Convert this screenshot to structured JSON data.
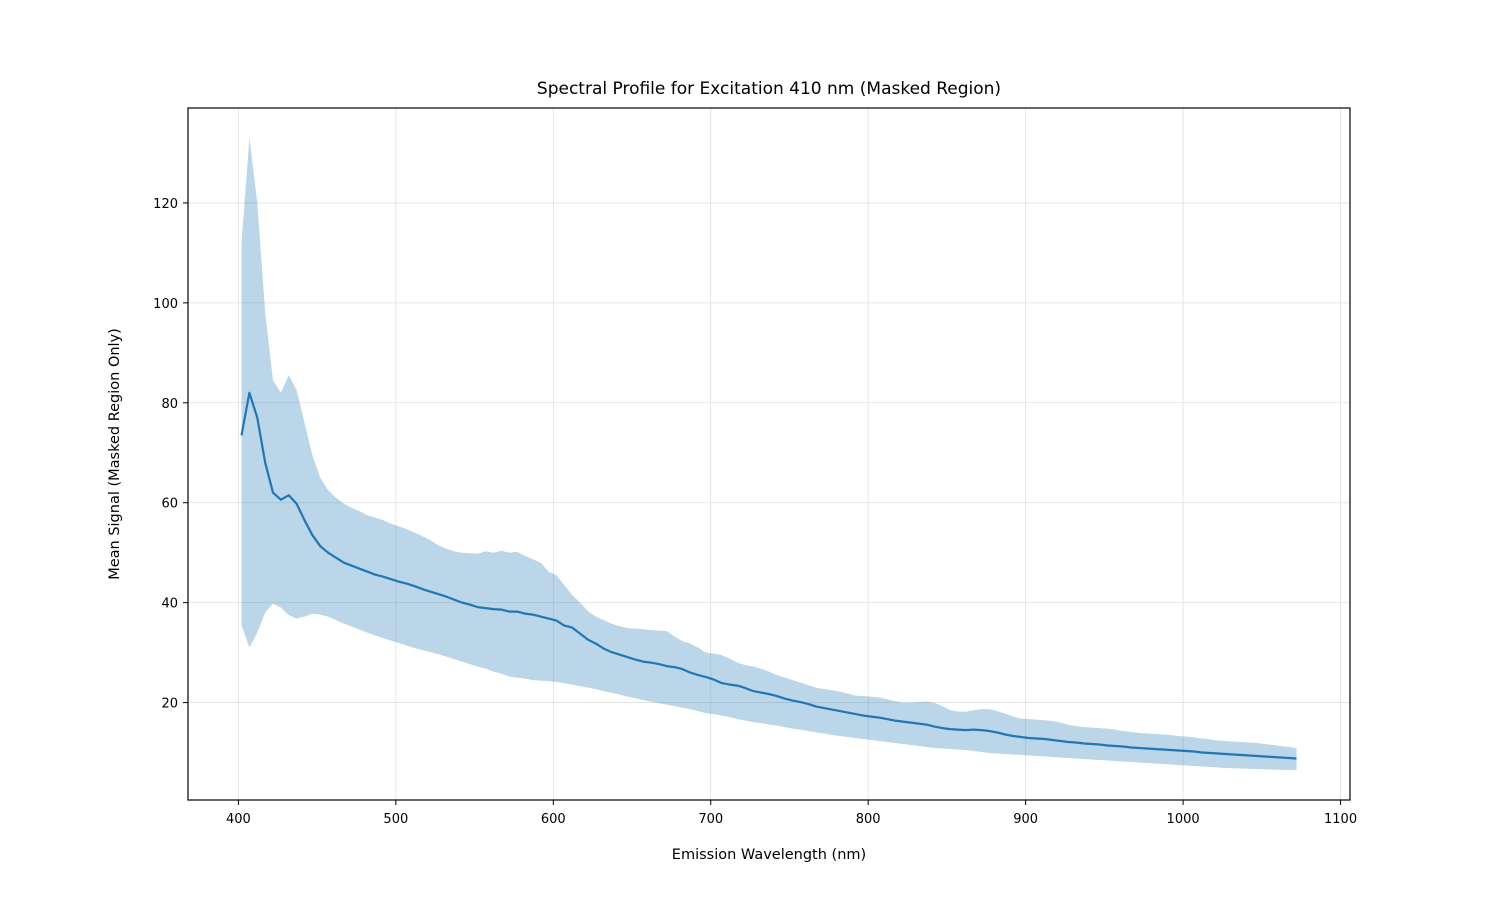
{
  "chart_data": {
    "type": "line",
    "title": "Spectral Profile for Excitation 410 nm (Masked Region)",
    "xlabel": "Emission Wavelength (nm)",
    "ylabel": "Mean Signal (Masked Region Only)",
    "xlim": [
      368,
      1106
    ],
    "ylim": [
      0.5,
      139
    ],
    "xticks": [
      400,
      500,
      600,
      700,
      800,
      900,
      1000,
      1100
    ],
    "yticks": [
      20,
      40,
      60,
      80,
      100,
      120
    ],
    "grid": true,
    "legend": "none",
    "colors": {
      "line": "#1f77b4",
      "band": "#1f77b4",
      "band_opacity": 0.3,
      "grid": "#e0e0e0"
    },
    "series": [
      {
        "x": [
          402,
          407,
          412,
          417,
          422,
          427,
          432,
          437,
          442,
          447,
          452,
          457,
          462,
          467,
          472,
          477,
          482,
          487,
          492,
          497,
          502,
          507,
          512,
          517,
          522,
          527,
          532,
          537,
          542,
          547,
          552,
          557,
          562,
          567,
          572,
          577,
          582,
          587,
          592,
          597,
          602,
          607,
          612,
          617,
          622,
          627,
          632,
          637,
          642,
          647,
          652,
          657,
          662,
          667,
          672,
          677,
          682,
          687,
          692,
          697,
          702,
          707,
          712,
          717,
          722,
          727,
          732,
          737,
          742,
          747,
          752,
          757,
          762,
          767,
          772,
          777,
          782,
          787,
          792,
          797,
          802,
          807,
          812,
          817,
          822,
          827,
          832,
          837,
          842,
          847,
          852,
          857,
          862,
          867,
          872,
          877,
          882,
          887,
          892,
          897,
          902,
          907,
          912,
          917,
          922,
          927,
          932,
          937,
          942,
          947,
          952,
          957,
          962,
          967,
          972,
          977,
          982,
          987,
          992,
          997,
          1002,
          1007,
          1012,
          1017,
          1022,
          1027,
          1032,
          1037,
          1042,
          1047,
          1052,
          1057,
          1062,
          1067,
          1072
        ],
        "mean": [
          73.5,
          82.0,
          77.0,
          68.0,
          62.0,
          60.6,
          61.5,
          59.8,
          56.5,
          53.5,
          51.3,
          50.0,
          49.0,
          48.0,
          47.4,
          46.8,
          46.2,
          45.6,
          45.2,
          44.7,
          44.2,
          43.8,
          43.3,
          42.7,
          42.2,
          41.7,
          41.2,
          40.6,
          40.0,
          39.6,
          39.1,
          38.9,
          38.7,
          38.6,
          38.2,
          38.2,
          37.8,
          37.6,
          37.2,
          36.8,
          36.4,
          35.4,
          35.0,
          33.8,
          32.6,
          31.8,
          30.8,
          30.1,
          29.6,
          29.1,
          28.6,
          28.2,
          28.0,
          27.7,
          27.3,
          27.1,
          26.7,
          26.0,
          25.5,
          25.1,
          24.6,
          23.9,
          23.6,
          23.4,
          22.9,
          22.3,
          22.0,
          21.7,
          21.3,
          20.8,
          20.4,
          20.1,
          19.7,
          19.2,
          18.9,
          18.6,
          18.3,
          18.0,
          17.7,
          17.4,
          17.2,
          17.0,
          16.7,
          16.4,
          16.2,
          16.0,
          15.8,
          15.6,
          15.2,
          14.9,
          14.7,
          14.6,
          14.5,
          14.6,
          14.5,
          14.3,
          14.0,
          13.6,
          13.3,
          13.1,
          12.9,
          12.8,
          12.7,
          12.5,
          12.3,
          12.1,
          12.0,
          11.8,
          11.7,
          11.6,
          11.4,
          11.3,
          11.2,
          11.0,
          10.9,
          10.8,
          10.7,
          10.6,
          10.5,
          10.4,
          10.3,
          10.2,
          10.0,
          9.9,
          9.8,
          9.7,
          9.6,
          9.5,
          9.4,
          9.3,
          9.2,
          9.1,
          9.0,
          8.9,
          8.8
        ],
        "upper": [
          112.0,
          133.0,
          120.0,
          98.0,
          84.5,
          82.0,
          85.5,
          82.5,
          76.0,
          69.5,
          65.0,
          62.5,
          61.0,
          59.8,
          59.0,
          58.3,
          57.5,
          57.0,
          56.5,
          55.8,
          55.3,
          54.7,
          54.0,
          53.3,
          52.5,
          51.5,
          50.8,
          50.3,
          50.0,
          49.9,
          49.8,
          50.3,
          50.0,
          50.4,
          50.0,
          50.2,
          49.4,
          48.7,
          48.0,
          46.2,
          45.5,
          43.5,
          41.5,
          40.0,
          38.3,
          37.2,
          36.5,
          35.8,
          35.3,
          34.9,
          34.8,
          34.7,
          34.5,
          34.4,
          34.3,
          33.2,
          32.3,
          31.8,
          31.0,
          30.0,
          29.8,
          29.5,
          28.8,
          28.0,
          27.5,
          27.2,
          26.8,
          26.2,
          25.5,
          25.0,
          24.5,
          24.0,
          23.5,
          23.0,
          22.7,
          22.5,
          22.2,
          21.8,
          21.4,
          21.3,
          21.2,
          21.0,
          20.7,
          20.3,
          20.0,
          20.0,
          20.1,
          20.2,
          20.0,
          19.3,
          18.5,
          18.2,
          18.2,
          18.5,
          18.7,
          18.7,
          18.3,
          17.8,
          17.2,
          16.8,
          16.7,
          16.6,
          16.5,
          16.3,
          16.0,
          15.6,
          15.3,
          15.1,
          15.0,
          14.9,
          14.8,
          14.6,
          14.3,
          14.1,
          13.9,
          13.8,
          13.7,
          13.6,
          13.5,
          13.3,
          13.2,
          13.0,
          12.8,
          12.6,
          12.4,
          12.3,
          12.2,
          12.1,
          12.0,
          11.9,
          11.7,
          11.5,
          11.3,
          11.1,
          10.9
        ],
        "lower": [
          35.5,
          31.0,
          34.0,
          38.0,
          39.8,
          39.0,
          37.5,
          36.8,
          37.2,
          37.8,
          37.6,
          37.2,
          36.5,
          35.8,
          35.2,
          34.6,
          34.0,
          33.4,
          32.9,
          32.4,
          31.9,
          31.4,
          30.9,
          30.5,
          30.1,
          29.7,
          29.2,
          28.7,
          28.2,
          27.7,
          27.2,
          26.8,
          26.2,
          25.8,
          25.2,
          25.0,
          24.8,
          24.5,
          24.4,
          24.3,
          24.1,
          23.9,
          23.6,
          23.3,
          23.0,
          22.7,
          22.3,
          22.0,
          21.6,
          21.2,
          20.9,
          20.5,
          20.2,
          19.9,
          19.6,
          19.3,
          19.0,
          18.7,
          18.3,
          17.9,
          17.7,
          17.4,
          17.1,
          16.7,
          16.4,
          16.1,
          15.9,
          15.6,
          15.4,
          15.1,
          14.8,
          14.6,
          14.3,
          14.0,
          13.8,
          13.5,
          13.3,
          13.1,
          12.9,
          12.7,
          12.5,
          12.3,
          12.1,
          11.9,
          11.7,
          11.5,
          11.3,
          11.1,
          10.9,
          10.8,
          10.7,
          10.6,
          10.5,
          10.3,
          10.1,
          9.9,
          9.8,
          9.7,
          9.6,
          9.5,
          9.4,
          9.3,
          9.2,
          9.1,
          9.0,
          8.9,
          8.8,
          8.7,
          8.6,
          8.5,
          8.4,
          8.3,
          8.2,
          8.1,
          8.0,
          7.9,
          7.8,
          7.7,
          7.6,
          7.5,
          7.4,
          7.3,
          7.2,
          7.1,
          7.0,
          6.9,
          6.85,
          6.8,
          6.75,
          6.7,
          6.65,
          6.6,
          6.55,
          6.5,
          6.45
        ]
      }
    ]
  }
}
